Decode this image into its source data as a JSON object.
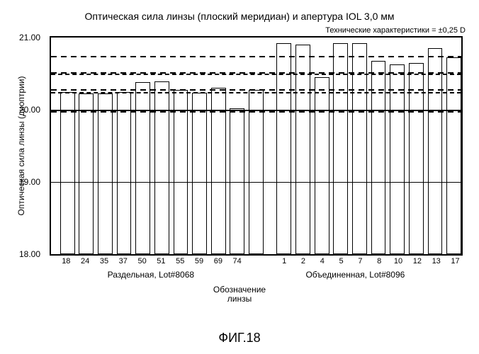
{
  "chart": {
    "type": "bar",
    "title": "Оптическая сила линзы (плоский меридиан) и апертура IOL 3,0 мм",
    "spec_note": "Технические характеристики = ±0,25 D",
    "ylabel": "Оптическая сила линзы (диоптрии)",
    "xlabel_line1": "Обозначение",
    "xlabel_line2": "линзы",
    "fig_label": "ФИГ.18",
    "group_a_label": "Раздельная, Lot#8068",
    "group_b_label": "Объединенная, Lot#8096",
    "ylim": [
      18.0,
      21.0
    ],
    "yticks": [
      18.0,
      19.0,
      20.0,
      21.0
    ],
    "ytick_labels": [
      "18.00",
      "19.00",
      "20.00",
      "21.00"
    ],
    "ref_lines_solid": [
      20.0
    ],
    "ref_lines_long_dash": [
      20.25,
      20.5
    ],
    "ref_lines_short_dash": [
      19.98,
      20.28,
      20.52,
      20.75
    ],
    "background_color": "#ffffff",
    "bar_fill": "#ffffff",
    "bar_border": "#000000",
    "border_color": "#000000",
    "group_gap_pct": 4.0,
    "bars": [
      {
        "label": "18",
        "value": 20.25,
        "group": "a",
        "x_pct": 2.2,
        "w_pct": 3.6
      },
      {
        "label": "24",
        "value": 20.23,
        "group": "a",
        "x_pct": 6.8,
        "w_pct": 3.6
      },
      {
        "label": "35",
        "value": 20.23,
        "group": "a",
        "x_pct": 11.4,
        "w_pct": 3.6
      },
      {
        "label": "37",
        "value": 20.25,
        "group": "a",
        "x_pct": 16.0,
        "w_pct": 3.6
      },
      {
        "label": "50",
        "value": 20.38,
        "group": "a",
        "x_pct": 20.6,
        "w_pct": 3.6
      },
      {
        "label": "51",
        "value": 20.39,
        "group": "a",
        "x_pct": 25.2,
        "w_pct": 3.6
      },
      {
        "label": "55",
        "value": 20.27,
        "group": "a",
        "x_pct": 29.8,
        "w_pct": 3.6
      },
      {
        "label": "59",
        "value": 20.24,
        "group": "a",
        "x_pct": 34.4,
        "w_pct": 3.6
      },
      {
        "label": "69",
        "value": 20.3,
        "group": "a",
        "x_pct": 39.0,
        "w_pct": 3.6
      },
      {
        "label": "74",
        "value": 20.02,
        "group": "a",
        "x_pct": 43.6,
        "w_pct": 3.6
      },
      {
        "label": "",
        "value": 20.27,
        "group": "a",
        "x_pct": 48.2,
        "w_pct": 3.6
      },
      {
        "label": "1",
        "value": 20.92,
        "group": "b",
        "x_pct": 55.0,
        "w_pct": 3.6
      },
      {
        "label": "2",
        "value": 20.9,
        "group": "b",
        "x_pct": 59.6,
        "w_pct": 3.6
      },
      {
        "label": "4",
        "value": 20.45,
        "group": "b",
        "x_pct": 64.2,
        "w_pct": 3.6
      },
      {
        "label": "5",
        "value": 20.92,
        "group": "b",
        "x_pct": 68.8,
        "w_pct": 3.6
      },
      {
        "label": "7",
        "value": 20.92,
        "group": "b",
        "x_pct": 73.4,
        "w_pct": 3.6
      },
      {
        "label": "8",
        "value": 20.68,
        "group": "b",
        "x_pct": 78.0,
        "w_pct": 3.6
      },
      {
        "label": "10",
        "value": 20.63,
        "group": "b",
        "x_pct": 82.6,
        "w_pct": 3.6
      },
      {
        "label": "12",
        "value": 20.65,
        "group": "b",
        "x_pct": 87.2,
        "w_pct": 3.6
      },
      {
        "label": "13",
        "value": 20.85,
        "group": "b",
        "x_pct": 91.8,
        "w_pct": 3.6
      },
      {
        "label": "17",
        "value": 20.73,
        "group": "b",
        "x_pct": 96.4,
        "w_pct": 3.6
      },
      {
        "label": "",
        "value": 20.75,
        "group": "b",
        "x_pct": 101.0,
        "w_pct": 0
      }
    ]
  }
}
